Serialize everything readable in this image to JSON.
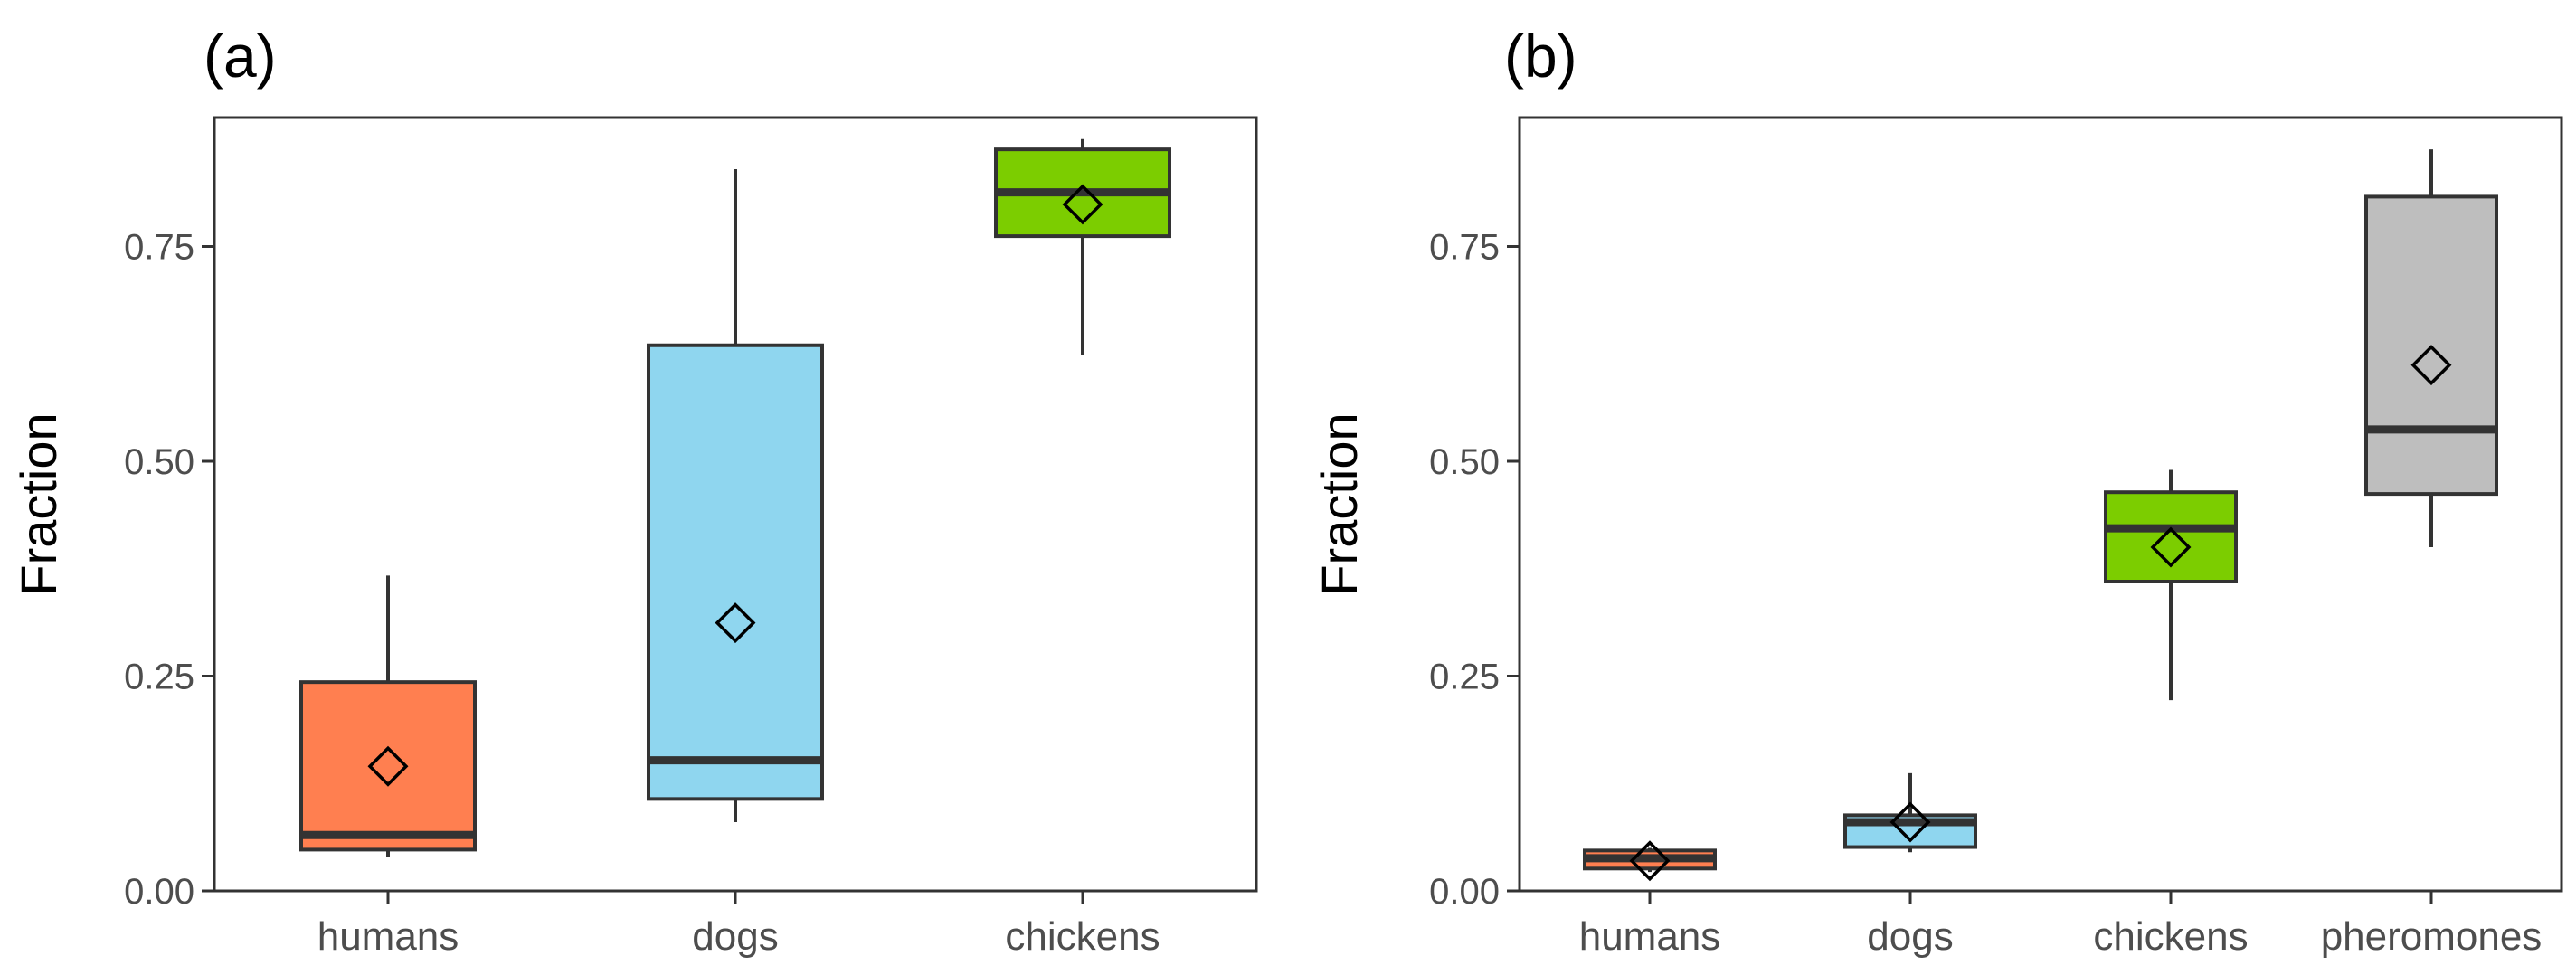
{
  "chart_data": [
    {
      "type": "box",
      "panel_label": "(a)",
      "title": "",
      "xlabel": "",
      "ylabel": "Fraction",
      "ylim": [
        0,
        0.9
      ],
      "yticks": [
        0,
        0.25,
        0.5,
        0.75
      ],
      "ytick_labels": [
        "0.00",
        "0.25",
        "0.50",
        "0.75"
      ],
      "grid": false,
      "legend": "none",
      "categories": [
        "humans",
        "dogs",
        "chickens"
      ],
      "boxes": [
        {
          "category": "humans",
          "whisker_low": 0.04,
          "q1": 0.048,
          "median": 0.065,
          "q3": 0.243,
          "whisker_high": 0.367,
          "mean": 0.145,
          "color": "#FF7F50"
        },
        {
          "category": "dogs",
          "whisker_low": 0.08,
          "q1": 0.107,
          "median": 0.152,
          "q3": 0.635,
          "whisker_high": 0.84,
          "mean": 0.312,
          "color": "#8FD6EF"
        },
        {
          "category": "chickens",
          "whisker_low": 0.624,
          "q1": 0.762,
          "median": 0.813,
          "q3": 0.863,
          "whisker_high": 0.875,
          "mean": 0.799,
          "color": "#7CCD00"
        }
      ]
    },
    {
      "type": "box",
      "panel_label": "(b)",
      "title": "",
      "xlabel": "",
      "ylabel": "Fraction",
      "ylim": [
        0,
        0.9
      ],
      "yticks": [
        0,
        0.25,
        0.5,
        0.75
      ],
      "ytick_labels": [
        "0.00",
        "0.25",
        "0.50",
        "0.75"
      ],
      "grid": false,
      "legend": "none",
      "categories": [
        "humans",
        "dogs",
        "chickens",
        "pheromones"
      ],
      "boxes": [
        {
          "category": "humans",
          "whisker_low": 0.022,
          "q1": 0.026,
          "median": 0.038,
          "q3": 0.047,
          "whisker_high": 0.05,
          "mean": 0.035,
          "color": "#FF7F50"
        },
        {
          "category": "dogs",
          "whisker_low": 0.045,
          "q1": 0.051,
          "median": 0.08,
          "q3": 0.088,
          "whisker_high": 0.137,
          "mean": 0.08,
          "color": "#8FD6EF"
        },
        {
          "category": "chickens",
          "whisker_low": 0.222,
          "q1": 0.36,
          "median": 0.422,
          "q3": 0.464,
          "whisker_high": 0.49,
          "mean": 0.4,
          "color": "#7CCD00"
        },
        {
          "category": "pheromones",
          "whisker_low": 0.4,
          "q1": 0.462,
          "median": 0.537,
          "q3": 0.808,
          "whisker_high": 0.863,
          "mean": 0.612,
          "color": "#BEBEBE"
        }
      ]
    }
  ]
}
